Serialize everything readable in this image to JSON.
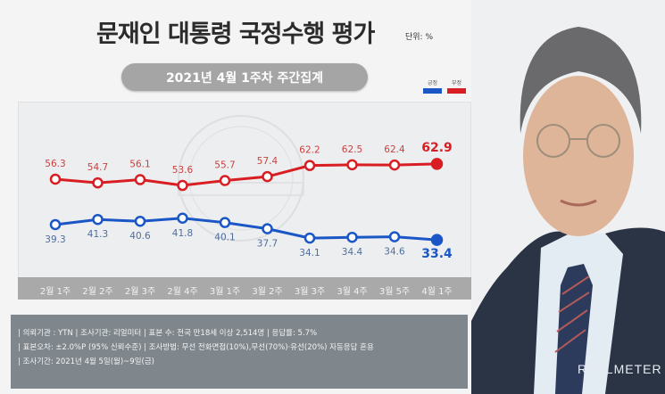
{
  "header": {
    "title": "문재인 대통령 국정수행 평가",
    "unit": "단위: %",
    "subtitle": "2021년 4월 1주차 주간집계"
  },
  "legend": [
    {
      "label": "긍정",
      "color": "#1a56c6"
    },
    {
      "label": "부정",
      "color": "#d81e22"
    }
  ],
  "chart_data": {
    "type": "line",
    "title": "문재인 대통령 국정수행 평가",
    "subtitle": "2021년 4월 1주차 주간집계",
    "xlabel": "",
    "ylabel": "단위: %",
    "categories": [
      "2월 1주",
      "2월 2주",
      "2월 3주",
      "2월 4주",
      "3월 1주",
      "3월 2주",
      "3월 3주",
      "3월 4주",
      "3월 5주",
      "4월 1주"
    ],
    "series": [
      {
        "name": "부정",
        "color": "#d81e22",
        "values": [
          56.3,
          54.7,
          56.1,
          53.6,
          55.7,
          57.4,
          62.2,
          62.5,
          62.4,
          62.9
        ]
      },
      {
        "name": "긍정",
        "color": "#1a56c6",
        "values": [
          39.3,
          41.3,
          40.6,
          41.8,
          40.1,
          37.7,
          34.1,
          34.4,
          34.6,
          33.4
        ]
      }
    ],
    "legend_position": "top-right",
    "grid": false
  },
  "info": {
    "line1": "| 의뢰기관 : YTN  |  조사기관: 리얼미터 |  표본 수: 전국 만18세 이상 2,514명  |  응답률: 5.7%",
    "line2": "| 표본오차: ±2.0%P (95% 신뢰수준) |  조사방법: 무선 전화면접(10%),무선(70%)·유선(20%) 자동응답 혼용",
    "line3": "| 조사기간: 2021년 4월 5일(월)~9일(금)"
  },
  "brand": {
    "logo": "REALMETER"
  }
}
